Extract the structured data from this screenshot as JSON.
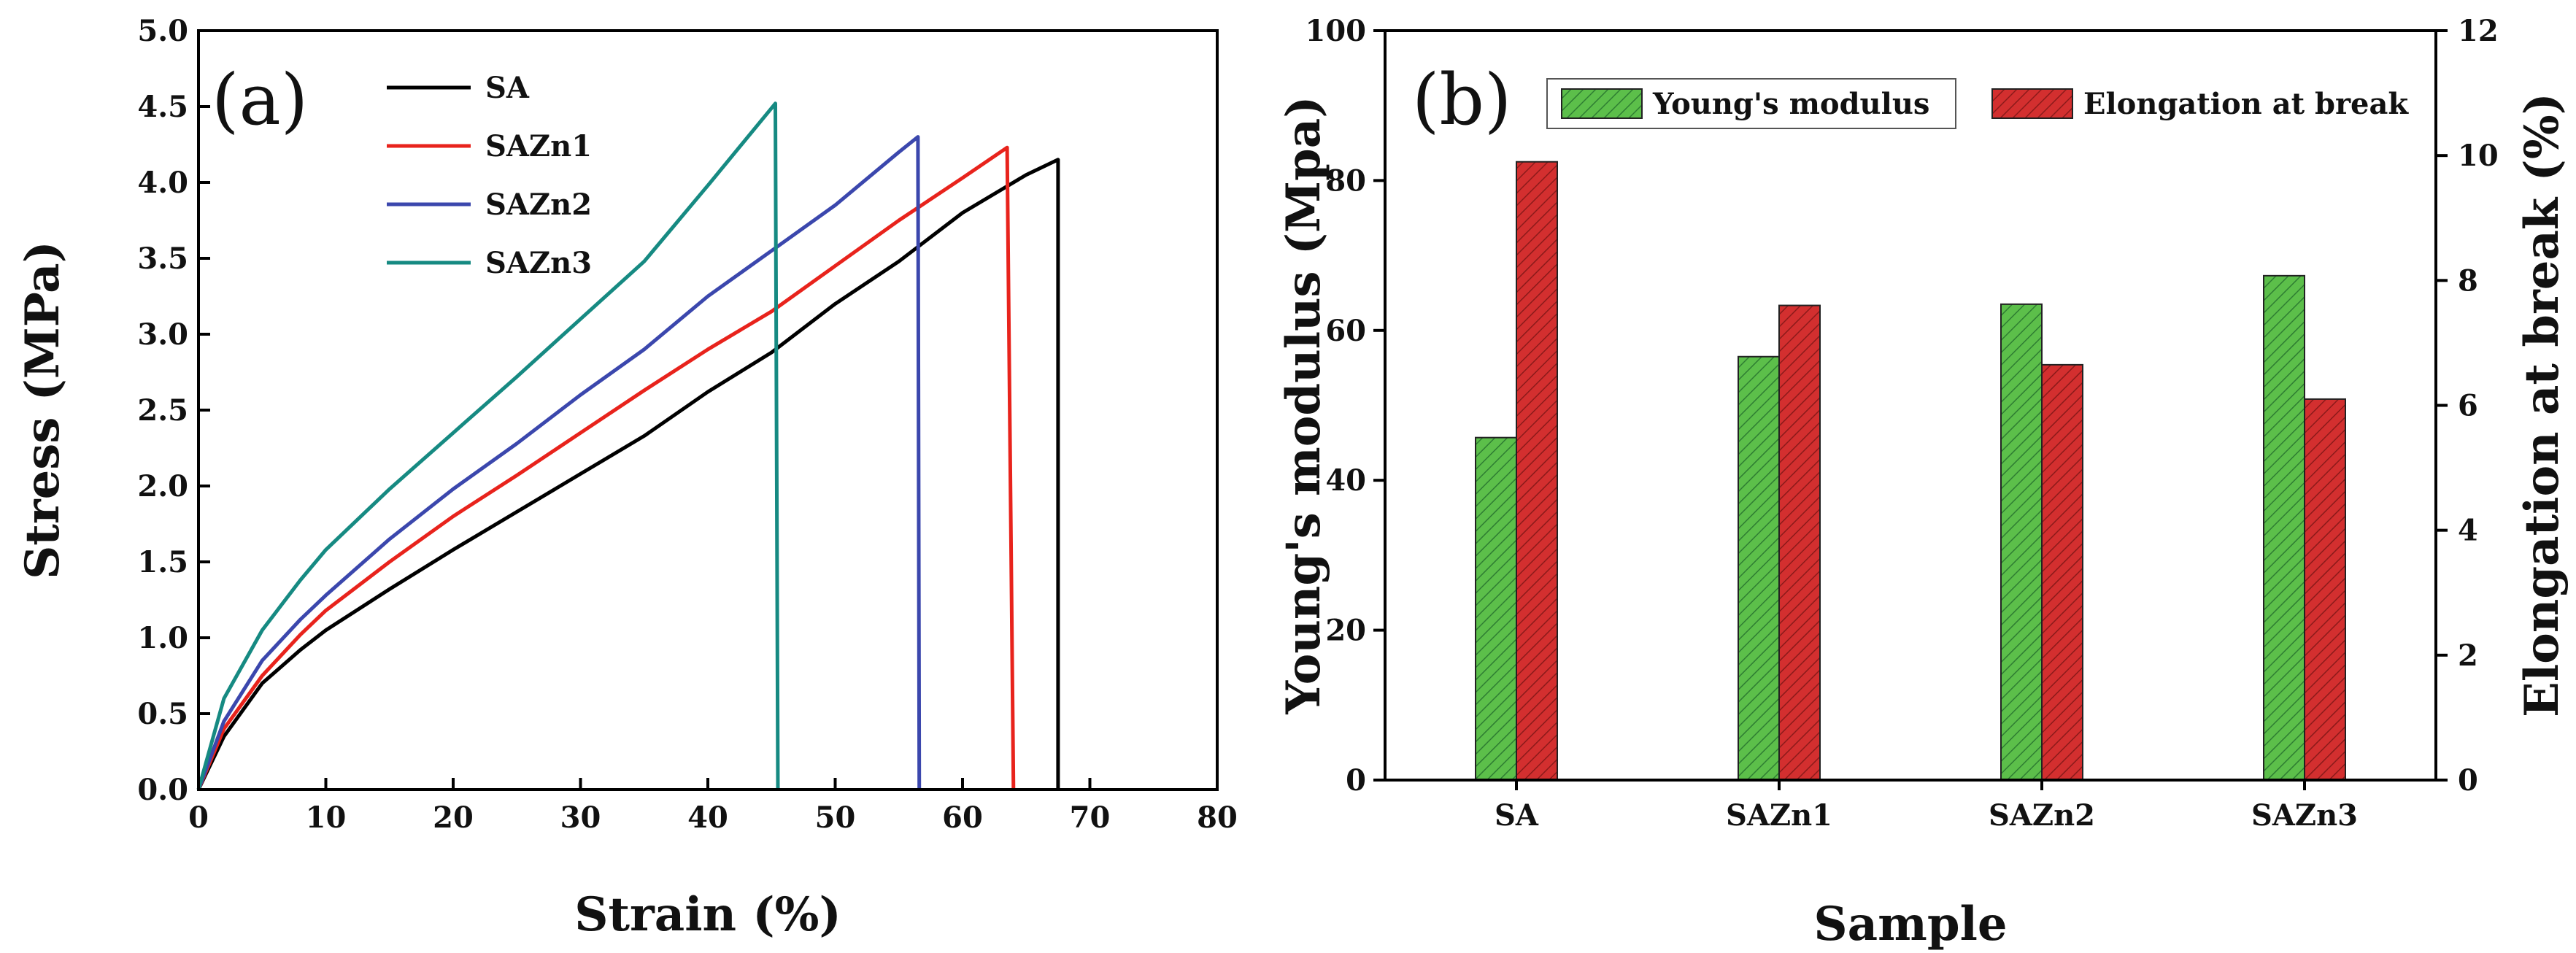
{
  "chart_data": [
    {
      "type": "line",
      "panel_label": "(a)",
      "xlabel": "Strain (%)",
      "ylabel": "Stress (MPa)",
      "xlim": [
        0,
        80
      ],
      "ylim": [
        0,
        5.0
      ],
      "xticks": [
        "0",
        "10",
        "20",
        "30",
        "40",
        "50",
        "60",
        "70",
        "80"
      ],
      "yticks": [
        "0.0",
        "0.5",
        "1.0",
        "1.5",
        "2.0",
        "2.5",
        "3.0",
        "3.5",
        "4.0",
        "4.5",
        "5.0"
      ],
      "legend_position": "top-left",
      "series": [
        {
          "name": "SA",
          "color": "#000000",
          "x": [
            0,
            2,
            5,
            8,
            10,
            15,
            20,
            25,
            30,
            35,
            40,
            45,
            50,
            55,
            60,
            65,
            67.5,
            67.5
          ],
          "y": [
            0,
            0.35,
            0.7,
            0.92,
            1.05,
            1.32,
            1.58,
            1.83,
            2.08,
            2.33,
            2.62,
            2.88,
            3.2,
            3.48,
            3.8,
            4.05,
            4.15,
            0
          ]
        },
        {
          "name": "SAZn1",
          "color": "#e8231c",
          "x": [
            0,
            2,
            5,
            8,
            10,
            15,
            20,
            25,
            30,
            35,
            40,
            45,
            50,
            55,
            60,
            63.5,
            64.0
          ],
          "y": [
            0,
            0.4,
            0.75,
            1.02,
            1.18,
            1.5,
            1.8,
            2.07,
            2.35,
            2.63,
            2.9,
            3.15,
            3.45,
            3.75,
            4.03,
            4.23,
            0
          ]
        },
        {
          "name": "SAZn2",
          "color": "#3b47ad",
          "x": [
            0,
            2,
            5,
            8,
            10,
            15,
            20,
            25,
            30,
            35,
            40,
            45,
            50,
            55,
            56.5,
            56.6
          ],
          "y": [
            0,
            0.45,
            0.85,
            1.12,
            1.28,
            1.65,
            1.98,
            2.28,
            2.6,
            2.9,
            3.25,
            3.55,
            3.85,
            4.2,
            4.3,
            0
          ]
        },
        {
          "name": "SAZn3",
          "color": "#168a82",
          "x": [
            0,
            2,
            5,
            8,
            10,
            15,
            20,
            25,
            30,
            35,
            40,
            45.3,
            45.5
          ],
          "y": [
            0,
            0.6,
            1.05,
            1.38,
            1.58,
            1.98,
            2.35,
            2.72,
            3.1,
            3.48,
            3.98,
            4.52,
            0
          ]
        }
      ]
    },
    {
      "type": "bar",
      "panel_label": "(b)",
      "xlabel": "Sample",
      "ylabel": "Young's modulus (Mpa)",
      "y2label": "Elongation at break (%)",
      "ylim": [
        0,
        100
      ],
      "y2lim": [
        0,
        12
      ],
      "yticks": [
        "0",
        "20",
        "40",
        "60",
        "80",
        "100"
      ],
      "y2ticks": [
        "0",
        "2",
        "4",
        "6",
        "8",
        "10",
        "12"
      ],
      "categories": [
        "SA",
        "SAZn1",
        "SAZn2",
        "SAZn3"
      ],
      "legend_position": "top",
      "series": [
        {
          "name": "Young's modulus",
          "axis": "left",
          "color": "#4caf50",
          "values": [
            45.7,
            56.5,
            63.5,
            67.3
          ]
        },
        {
          "name": "Elongation at break",
          "axis": "right",
          "color": "#d32f2f",
          "values": [
            9.9,
            7.6,
            6.65,
            6.1
          ]
        }
      ]
    }
  ]
}
